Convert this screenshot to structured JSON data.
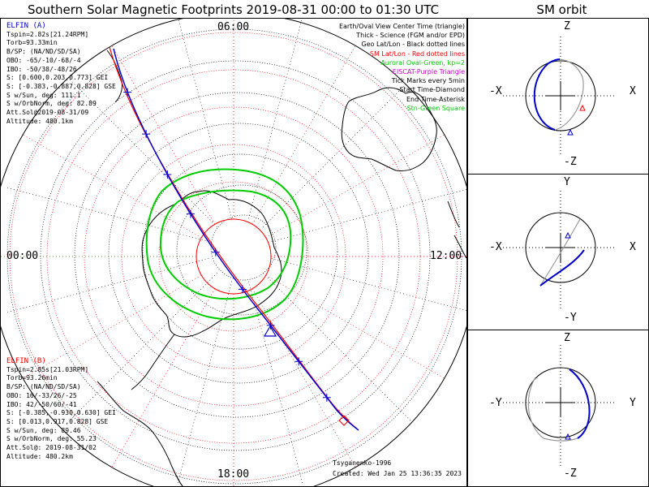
{
  "title": "Southern Solar Magnetic Footprints 2019-08-31 00:00 to 01:30 UTC",
  "orbit_title": "SM orbit",
  "clock_labels": {
    "top": "06:00",
    "left": "00:00",
    "right": "12:00",
    "bottom": "18:00"
  },
  "elfin_a": {
    "name": "ELFIN (A)",
    "color": "#0000cc",
    "lines": [
      "Tspin=2.82s[21.24RPM]",
      "Torb=93.33min",
      "B/SP: (NA/ND/SD/SA)",
      "OBO: -65/-10/-68/-4",
      "IBO: -50/38/-48/26",
      "S: [0.600,0.203,0.773] GEI",
      "S: [-0.383,-0.887,0.828] GSE",
      "S w/Sun, deg: 111.1",
      "S w/OrbNorm, deg: 82.89",
      "Att.Sol@2019-08-31/09",
      "Altitude: 480.1km"
    ]
  },
  "elfin_b": {
    "name": "ELFIN (B)",
    "color": "#ff0000",
    "lines": [
      "Tspin=2.85s[21.03RPM]",
      "Torb=93.26min",
      "B/SP: (NA/ND/SD/SA)",
      "OBO: 16/-33/26/-25",
      "IBO: 42/-50/60/-41",
      "S: [-0.385,-0.930,0.630] GEI",
      "S: [0.013,0.917,0.828] GSE",
      "S w/Sun, deg: 89.46",
      "S w/OrbNorm, deg: 55.23",
      "Att.Sol@: 2019-08-31/02",
      "Altitude: 480.2km"
    ]
  },
  "legend": [
    {
      "text": "Earth/Oval View Center Time (triangle)",
      "color": "#000000"
    },
    {
      "text": "Thick - Science (FGM and/or EPD)",
      "color": "#000000"
    },
    {
      "text": "Geo Lat/Lon - Black dotted lines",
      "color": "#000000"
    },
    {
      "text": "SM Lat/Lon - Red dotted lines",
      "color": "#ff0000"
    },
    {
      "text": "Auroral Oval-Green, kp=2",
      "color": "#00cc00"
    },
    {
      "text": "EISCAT-Purple Triangle",
      "color": "#cc00cc"
    },
    {
      "text": "Tick Marks every 5min",
      "color": "#000000"
    },
    {
      "text": "Start Time-Diamond",
      "color": "#000000"
    },
    {
      "text": "End Time-Asterisk",
      "color": "#000000"
    },
    {
      "text": "Stn-Green Square",
      "color": "#00cc00"
    }
  ],
  "model_text": "Tsyganenko-1996",
  "created_text": "Created: Wed Jan 25 13:36:35 2023",
  "orbit_panels": [
    {
      "top_label": "Z",
      "bottom_label": "-Z",
      "left_label": "-X",
      "right_label": "X"
    },
    {
      "top_label": "Y",
      "bottom_label": "-Y",
      "left_label": "-X",
      "right_label": "X"
    },
    {
      "top_label": "Z",
      "bottom_label": "-Z",
      "left_label": "-Y",
      "right_label": "Y"
    }
  ],
  "colors": {
    "auroral_oval": "#00cc00",
    "sm_grid": "#ff0000",
    "geo_grid": "#000000",
    "track_a": "#0000cc",
    "track_b": "#ff0000",
    "orbit_gray": "#999999"
  }
}
